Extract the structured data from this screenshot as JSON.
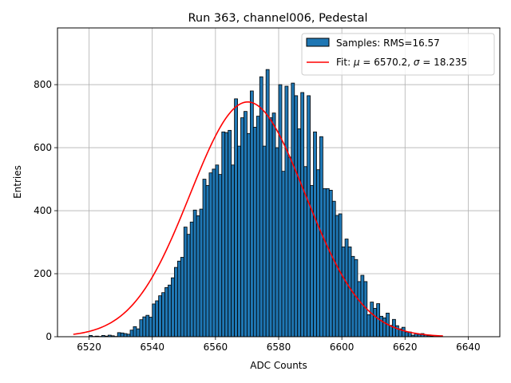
{
  "chart_data": {
    "type": "bar",
    "title": "Run 363, channel006, Pedestal",
    "xlabel": "ADC Counts",
    "ylabel": "Entries",
    "xlim": [
      6510,
      6650
    ],
    "ylim": [
      0,
      980
    ],
    "x_ticks": [
      6520,
      6540,
      6560,
      6580,
      6600,
      6620,
      6640
    ],
    "y_ticks": [
      0,
      200,
      400,
      600,
      800
    ],
    "grid": true,
    "legend_position": "top-right",
    "bin_start": 6515,
    "bin_width": 1,
    "histogram": {
      "name": "Samples: RMS=16.57",
      "color": "#1f77b4",
      "values": [
        0,
        0,
        0,
        0,
        0,
        4,
        1,
        2,
        1,
        4,
        2,
        5,
        3,
        1,
        13,
        12,
        10,
        8,
        21,
        32,
        25,
        54,
        63,
        68,
        62,
        104,
        114,
        130,
        140,
        156,
        164,
        187,
        220,
        240,
        252,
        348,
        325,
        364,
        402,
        384,
        405,
        500,
        480,
        520,
        532,
        545,
        515,
        650,
        648,
        655,
        545,
        755,
        605,
        695,
        715,
        645,
        780,
        665,
        700,
        825,
        605,
        848,
        695,
        710,
        600,
        800,
        525,
        795,
        570,
        805,
        765,
        660,
        775,
        540,
        765,
        480,
        650,
        530,
        635,
        470,
        470,
        465,
        430,
        385,
        390,
        285,
        310,
        285,
        255,
        245,
        175,
        195,
        175,
        70,
        110,
        90,
        105,
        65,
        60,
        75,
        36,
        55,
        35,
        25,
        30,
        15,
        15,
        5,
        10,
        8,
        10,
        5,
        3,
        2,
        1,
        0,
        0,
        0,
        0,
        0,
        0
      ]
    },
    "fit": {
      "label": "Fit: μ = 6570.2, σ = 18.235",
      "label_prefix": "Fit: ",
      "mu_symbol": "μ",
      "sigma_symbol": "σ",
      "mu_value": " = 6570.2, ",
      "sigma_value": " = 18.235",
      "color": "#ff0000",
      "mu": 6570.2,
      "sigma": 18.235,
      "amplitude": 745,
      "x_range": [
        6515,
        6632
      ]
    }
  }
}
